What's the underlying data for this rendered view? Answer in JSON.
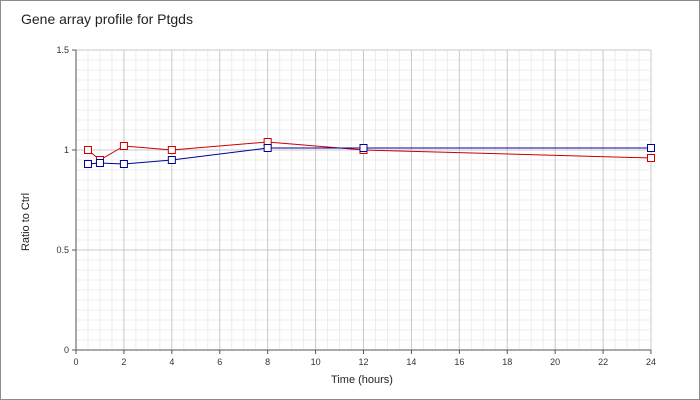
{
  "chart_data": {
    "type": "line",
    "title": "Gene array profile for Ptgds",
    "xlabel": "Time (hours)",
    "ylabel": "Ratio to Ctrl",
    "xlim": [
      0,
      24
    ],
    "ylim": [
      0,
      1.5
    ],
    "x_ticks": [
      0,
      2,
      4,
      6,
      8,
      10,
      12,
      14,
      16,
      18,
      20,
      22,
      24
    ],
    "y_ticks": [
      0,
      0.5,
      1,
      1.5
    ],
    "x_tick_labels": [
      "0",
      "2",
      "4",
      "6",
      "8",
      "10",
      "12",
      "14",
      "16",
      "18",
      "20",
      "22",
      "24"
    ],
    "y_tick_labels": [
      "0",
      "0.5",
      "1",
      "1.5"
    ],
    "grid": true,
    "series": [
      {
        "color": "#cc0000",
        "x": [
          0.5,
          1,
          2,
          4,
          8,
          12,
          24
        ],
        "y": [
          1.0,
          0.95,
          1.02,
          1.0,
          1.04,
          1.0,
          0.96
        ]
      },
      {
        "color": "#00009c",
        "x": [
          0.5,
          1,
          2,
          4,
          8,
          12,
          24
        ],
        "y": [
          0.93,
          0.935,
          0.93,
          0.95,
          1.01,
          1.01,
          1.01
        ]
      }
    ]
  }
}
